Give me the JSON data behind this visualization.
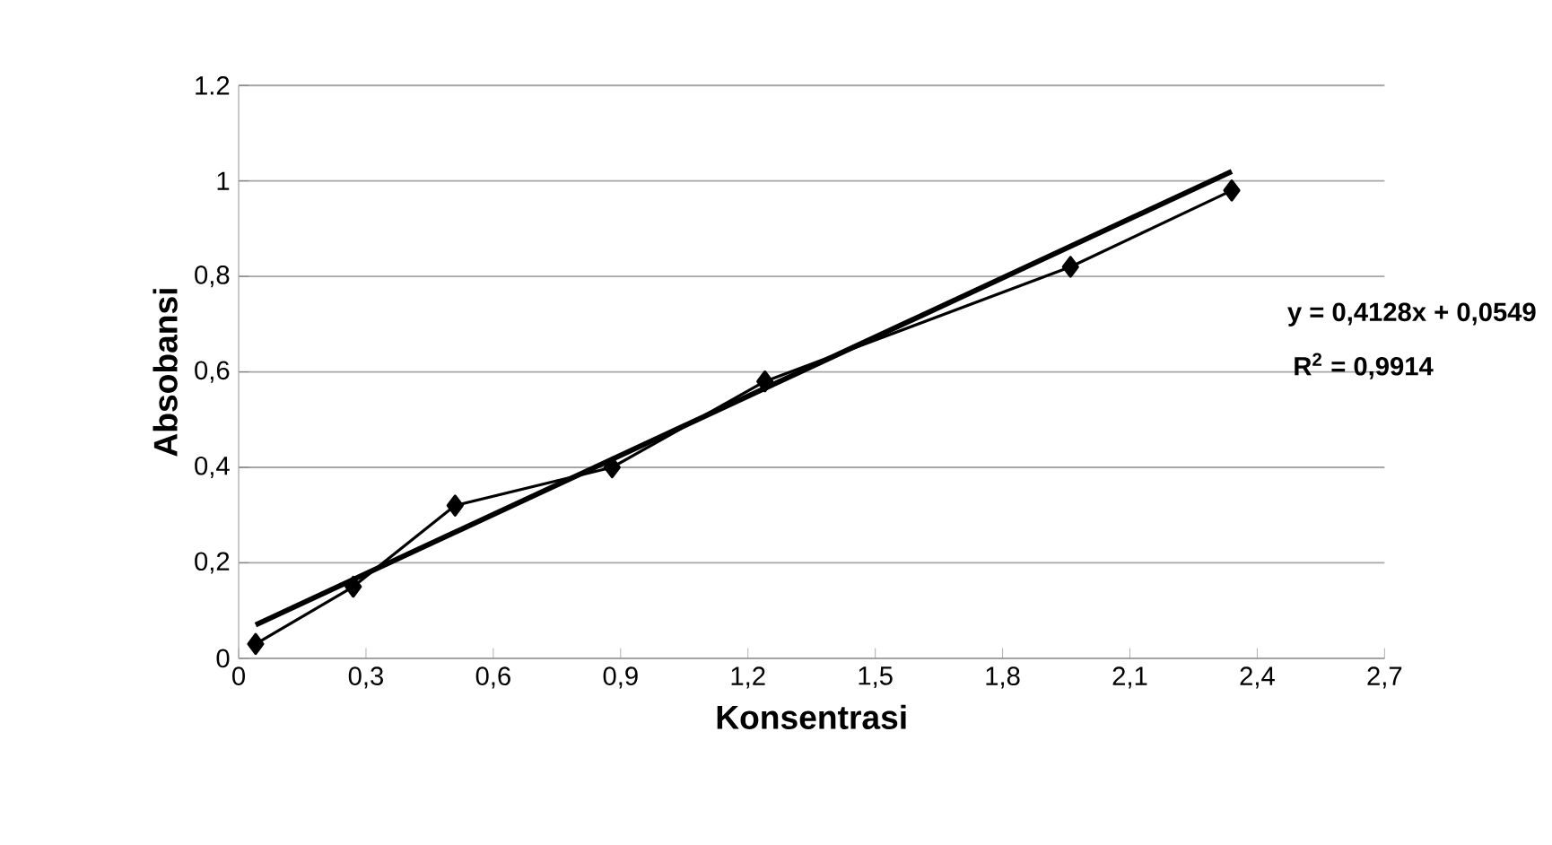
{
  "chart_data": {
    "type": "line",
    "xlabel": "Konsentrasi",
    "ylabel": "Absobansi",
    "xlim": [
      0,
      2.7
    ],
    "ylim": [
      0,
      1.2
    ],
    "xticks": [
      0,
      {
        "value": 0.3,
        "label": "0,3"
      },
      {
        "value": 0.6,
        "label": "0,6"
      },
      {
        "value": 0.9,
        "label": "0,9"
      },
      {
        "value": 1.2,
        "label": "1,2"
      },
      {
        "value": 1.5,
        "label": "1,5"
      },
      {
        "value": 1.8,
        "label": "1,8"
      },
      {
        "value": 2.1,
        "label": "2,1"
      },
      {
        "value": 2.4,
        "label": "2,4"
      },
      {
        "value": 2.7,
        "label": "2,7"
      }
    ],
    "yticks": [
      0,
      {
        "value": 0.2,
        "label": "0,2"
      },
      {
        "value": 0.4,
        "label": "0,4"
      },
      {
        "value": 0.6,
        "label": "0,6"
      },
      {
        "value": 0.8,
        "label": "0,8"
      },
      1,
      {
        "value": 1.2,
        "label": "1.2"
      }
    ],
    "grid": "y",
    "series": [
      {
        "color": "#000000",
        "marker": "diamond",
        "x": [
          0.04,
          0.27,
          0.51,
          0.88,
          1.24,
          1.96,
          2.34
        ],
        "values": [
          0.03,
          0.15,
          0.32,
          0.4,
          0.58,
          0.82,
          0.98
        ]
      },
      {
        "color": "#000000",
        "marker": "none",
        "x": [
          0.04,
          2.34
        ],
        "values": [
          0.07,
          1.02
        ]
      }
    ],
    "annotations": [
      "y = 0,4128x + 0,0549",
      "R$^{2}$ = 0,9914"
    ]
  }
}
